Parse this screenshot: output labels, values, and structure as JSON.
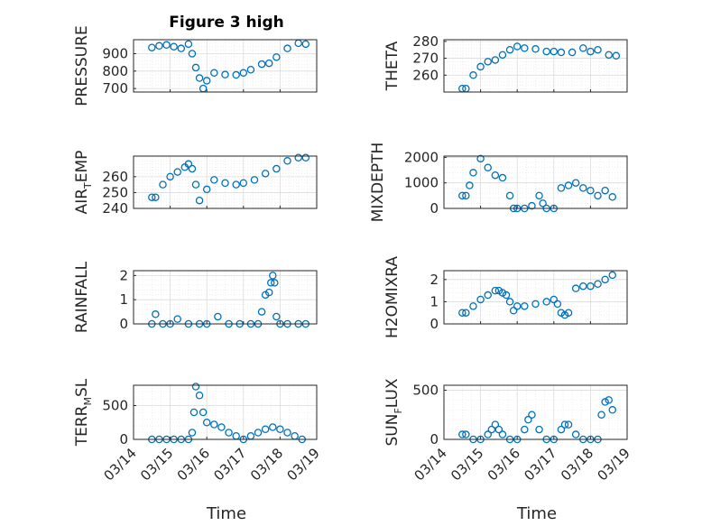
{
  "figure_title": "Figure 3 high",
  "x_ticklabels": [
    "03/14",
    "03/15",
    "03/16",
    "03/17",
    "03/18",
    "03/19"
  ],
  "x_axis_label": "Time",
  "colors": {
    "marker": "#0072BD",
    "axis": "#262626",
    "grid": "#dcdcdc",
    "background": "#ffffff"
  },
  "chart_data": [
    {
      "type": "scatter",
      "ylabel": "PRESSURE",
      "xlim": [
        0,
        5
      ],
      "ylim": [
        680,
        980
      ],
      "yticks": [
        700,
        800,
        900
      ],
      "yticklabels": [
        "700",
        "800",
        "900"
      ],
      "grid": true,
      "x": [
        0.5,
        0.7,
        0.9,
        1.1,
        1.3,
        1.5,
        1.6,
        1.7,
        1.8,
        1.9,
        2.0,
        2.2,
        2.5,
        2.8,
        3.0,
        3.2,
        3.5,
        3.7,
        3.9,
        4.2,
        4.5,
        4.7
      ],
      "y": [
        935,
        945,
        950,
        940,
        930,
        955,
        900,
        820,
        760,
        700,
        745,
        790,
        780,
        778,
        790,
        808,
        840,
        845,
        880,
        930,
        960,
        955
      ]
    },
    {
      "type": "scatter",
      "ylabel": "THETA",
      "xlim": [
        0,
        5
      ],
      "ylim": [
        250,
        281
      ],
      "yticks": [
        260,
        270,
        280
      ],
      "yticklabels": [
        "260",
        "270",
        "280"
      ],
      "grid": true,
      "x": [
        0.5,
        0.6,
        0.8,
        1.0,
        1.2,
        1.4,
        1.6,
        1.8,
        2.0,
        2.2,
        2.5,
        2.8,
        3.0,
        3.2,
        3.5,
        3.8,
        4.0,
        4.2,
        4.5,
        4.7
      ],
      "y": [
        252,
        252,
        260,
        265,
        268,
        269,
        272,
        275,
        277,
        276,
        275.5,
        274,
        274,
        273.5,
        273.5,
        276,
        274,
        275,
        272,
        271.5
      ]
    },
    {
      "type": "scatter",
      "ylabel": "AIR_TEMP",
      "xlim": [
        0,
        5
      ],
      "ylim": [
        240,
        273
      ],
      "yticks": [
        240,
        250,
        260
      ],
      "yticklabels": [
        "240",
        "250",
        "260"
      ],
      "grid": true,
      "x": [
        0.5,
        0.6,
        0.8,
        1.0,
        1.2,
        1.4,
        1.5,
        1.6,
        1.7,
        1.8,
        2.0,
        2.2,
        2.5,
        2.8,
        3.0,
        3.3,
        3.6,
        3.9,
        4.2,
        4.5,
        4.7
      ],
      "y": [
        247,
        247,
        255,
        260,
        263,
        266,
        268,
        265,
        255,
        245,
        252,
        258,
        256,
        255,
        256,
        258,
        262,
        265,
        270,
        272,
        272
      ]
    },
    {
      "type": "scatter",
      "ylabel": "MIXDEPTH",
      "xlim": [
        0,
        5
      ],
      "ylim": [
        0,
        2050
      ],
      "yticks": [
        0,
        1000,
        2000
      ],
      "yticklabels": [
        "0",
        "1000",
        "2000"
      ],
      "grid": true,
      "x": [
        0.5,
        0.6,
        0.7,
        0.8,
        1.0,
        1.2,
        1.4,
        1.6,
        1.8,
        1.9,
        2.0,
        2.2,
        2.4,
        2.6,
        2.7,
        2.8,
        3.0,
        3.2,
        3.4,
        3.6,
        3.8,
        4.0,
        4.2,
        4.4,
        4.6
      ],
      "y": [
        500,
        500,
        900,
        1400,
        1950,
        1600,
        1300,
        1200,
        500,
        0,
        0,
        0,
        100,
        500,
        200,
        0,
        0,
        800,
        900,
        1000,
        800,
        700,
        500,
        700,
        450
      ]
    },
    {
      "type": "scatter",
      "ylabel": "RAINFALL",
      "xlim": [
        0,
        5
      ],
      "ylim": [
        0,
        2.2
      ],
      "yticks": [
        0,
        1,
        2
      ],
      "yticklabels": [
        "0",
        "1",
        "2"
      ],
      "grid": true,
      "x": [
        0.5,
        0.6,
        0.8,
        1.0,
        1.2,
        1.5,
        1.8,
        2.0,
        2.3,
        2.6,
        2.9,
        3.2,
        3.4,
        3.5,
        3.6,
        3.7,
        3.75,
        3.8,
        3.85,
        3.9,
        4.0,
        4.2,
        4.5,
        4.7
      ],
      "y": [
        0,
        0.4,
        0,
        0,
        0.2,
        0,
        0,
        0,
        0.3,
        0,
        0,
        0,
        0,
        0.5,
        1.2,
        1.3,
        1.7,
        2.0,
        1.7,
        0.3,
        0,
        0,
        0,
        0
      ]
    },
    {
      "type": "scatter",
      "ylabel": "H2OMIXRA",
      "xlim": [
        0,
        5
      ],
      "ylim": [
        0,
        2.4
      ],
      "yticks": [
        0,
        1,
        2
      ],
      "yticklabels": [
        "0",
        "1",
        "2"
      ],
      "grid": true,
      "x": [
        0.5,
        0.6,
        0.8,
        1.0,
        1.2,
        1.4,
        1.5,
        1.6,
        1.7,
        1.8,
        1.9,
        2.0,
        2.2,
        2.5,
        2.8,
        3.0,
        3.1,
        3.2,
        3.3,
        3.4,
        3.6,
        3.8,
        4.0,
        4.2,
        4.4,
        4.6
      ],
      "y": [
        0.5,
        0.5,
        0.8,
        1.1,
        1.3,
        1.5,
        1.5,
        1.4,
        1.3,
        1.0,
        0.6,
        0.8,
        0.8,
        0.9,
        1.0,
        1.1,
        0.9,
        0.5,
        0.4,
        0.5,
        1.6,
        1.7,
        1.7,
        1.8,
        2.0,
        2.2
      ]
    },
    {
      "type": "scatter",
      "ylabel": "TERR_MSL",
      "xlim": [
        0,
        5
      ],
      "ylim": [
        0,
        800
      ],
      "yticks": [
        0,
        500
      ],
      "yticklabels": [
        "0",
        "500"
      ],
      "grid": true,
      "x": [
        0.5,
        0.7,
        0.9,
        1.1,
        1.3,
        1.5,
        1.6,
        1.65,
        1.7,
        1.8,
        1.9,
        2.0,
        2.2,
        2.4,
        2.6,
        2.8,
        3.0,
        3.2,
        3.4,
        3.6,
        3.8,
        4.0,
        4.2,
        4.4,
        4.6
      ],
      "y": [
        0,
        0,
        0,
        0,
        0,
        0,
        100,
        400,
        780,
        650,
        400,
        250,
        220,
        180,
        100,
        50,
        0,
        50,
        100,
        150,
        180,
        150,
        100,
        50,
        0
      ]
    },
    {
      "type": "scatter",
      "ylabel": "SUN_FLUX",
      "xlim": [
        0,
        5
      ],
      "ylim": [
        0,
        550
      ],
      "yticks": [
        0,
        500
      ],
      "yticklabels": [
        "0",
        "500"
      ],
      "grid": true,
      "x": [
        0.5,
        0.6,
        0.8,
        1.0,
        1.2,
        1.3,
        1.4,
        1.5,
        1.6,
        1.8,
        2.0,
        2.2,
        2.3,
        2.4,
        2.6,
        2.8,
        3.0,
        3.2,
        3.3,
        3.4,
        3.6,
        3.8,
        4.0,
        4.2,
        4.3,
        4.4,
        4.5,
        4.6
      ],
      "y": [
        50,
        50,
        0,
        0,
        50,
        100,
        150,
        100,
        50,
        0,
        0,
        100,
        200,
        250,
        100,
        0,
        0,
        100,
        150,
        150,
        50,
        0,
        0,
        0,
        250,
        380,
        400,
        300
      ]
    }
  ]
}
